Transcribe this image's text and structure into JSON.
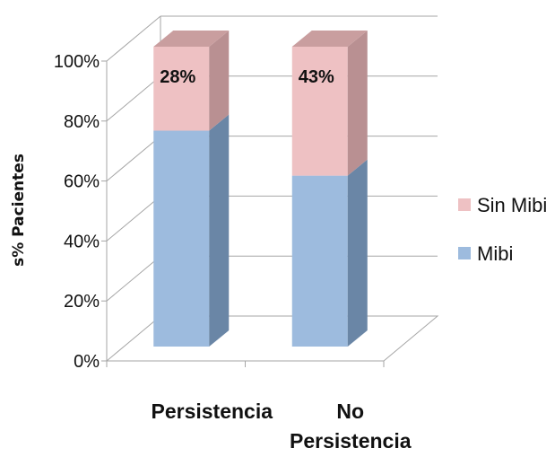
{
  "chart_data": {
    "type": "bar",
    "stacked": true,
    "percent_stacked": true,
    "three_d": true,
    "title": "",
    "xlabel": "",
    "ylabel": "s% Pacientes",
    "ylim": [
      0,
      100
    ],
    "yticks": [
      0,
      20,
      40,
      60,
      80,
      100
    ],
    "ytick_labels": [
      "0%",
      "20%",
      "40%",
      "60%",
      "80%",
      "100%"
    ],
    "categories": [
      {
        "lines": [
          "Persistencia"
        ]
      },
      {
        "lines": [
          "No",
          "Persistencia"
        ]
      }
    ],
    "series": [
      {
        "name": "Mibi",
        "values": [
          72,
          57
        ],
        "color": "#9dbbde",
        "side_color": "#6a86a6",
        "labels": [
          "",
          ""
        ]
      },
      {
        "name": "Sin Mibi",
        "values": [
          28,
          43
        ],
        "color": "#eec1c3",
        "side_color": "#b99092",
        "top_color": "#c99e9f",
        "labels": [
          "28%",
          "43%"
        ]
      }
    ],
    "grid": true,
    "legend_position": "right"
  }
}
